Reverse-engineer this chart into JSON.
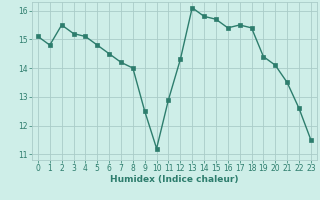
{
  "x": [
    0,
    1,
    2,
    3,
    4,
    5,
    6,
    7,
    8,
    9,
    10,
    11,
    12,
    13,
    14,
    15,
    16,
    17,
    18,
    19,
    20,
    21,
    22,
    23
  ],
  "y": [
    15.1,
    14.8,
    15.5,
    15.2,
    15.1,
    14.8,
    14.5,
    14.2,
    14.0,
    12.5,
    11.2,
    12.9,
    14.3,
    16.1,
    15.8,
    15.7,
    15.4,
    15.5,
    15.4,
    14.4,
    14.1,
    13.5,
    12.6,
    11.5
  ],
  "xlabel": "Humidex (Indice chaleur)",
  "xlim_min": -0.5,
  "xlim_max": 23.5,
  "ylim_min": 10.8,
  "ylim_max": 16.3,
  "yticks": [
    11,
    12,
    13,
    14,
    15,
    16
  ],
  "xticks": [
    0,
    1,
    2,
    3,
    4,
    5,
    6,
    7,
    8,
    9,
    10,
    11,
    12,
    13,
    14,
    15,
    16,
    17,
    18,
    19,
    20,
    21,
    22,
    23
  ],
  "line_color": "#2d7d6d",
  "bg_color": "#ceeee8",
  "grid_color": "#aaccc8",
  "font_color": "#2d7d6d",
  "tick_fontsize": 5.5,
  "xlabel_fontsize": 6.5
}
